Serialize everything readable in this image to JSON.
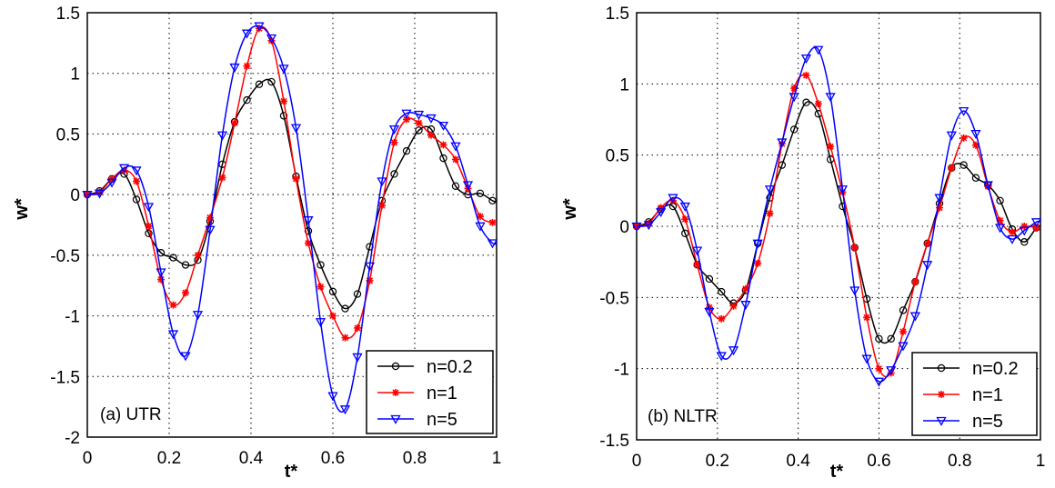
{
  "chart_data": [
    {
      "type": "line",
      "panel_label": "(a) UTR",
      "xlabel": "t*",
      "ylabel": "w*",
      "xlim": [
        0,
        1
      ],
      "ylim": [
        -2,
        1.5
      ],
      "xticks": [
        "0",
        "0.2",
        "0.4",
        "0.6",
        "0.8",
        "1"
      ],
      "yticks": [
        "-2",
        "-1.5",
        "-1",
        "-0.5",
        "0",
        "0.5",
        "1",
        "1.5"
      ],
      "grid": true,
      "legend_position": "bottom-right",
      "x": [
        0,
        0.03,
        0.06,
        0.09,
        0.12,
        0.15,
        0.18,
        0.21,
        0.24,
        0.27,
        0.3,
        0.33,
        0.36,
        0.39,
        0.42,
        0.45,
        0.48,
        0.51,
        0.54,
        0.57,
        0.6,
        0.63,
        0.66,
        0.69,
        0.72,
        0.75,
        0.78,
        0.81,
        0.84,
        0.87,
        0.9,
        0.93,
        0.96,
        0.99,
        1.0
      ],
      "series": [
        {
          "name": "n=0.2",
          "color": "#000000",
          "marker": "circle",
          "values": [
            0,
            0.03,
            0.13,
            0.17,
            -0.04,
            -0.32,
            -0.48,
            -0.52,
            -0.58,
            -0.54,
            -0.22,
            0.25,
            0.6,
            0.78,
            0.91,
            0.93,
            0.65,
            0.15,
            -0.3,
            -0.58,
            -0.8,
            -0.94,
            -0.82,
            -0.43,
            -0.05,
            0.17,
            0.36,
            0.53,
            0.54,
            0.3,
            0.07,
            0.0,
            0.01,
            -0.05,
            -0.06
          ]
        },
        {
          "name": "n=1",
          "color": "#ff0000",
          "marker": "star",
          "values": [
            0,
            0.02,
            0.13,
            0.2,
            0.11,
            -0.26,
            -0.7,
            -0.91,
            -0.81,
            -0.5,
            -0.19,
            0.14,
            0.59,
            1.06,
            1.37,
            1.27,
            0.77,
            0.13,
            -0.4,
            -0.76,
            -1.0,
            -1.18,
            -1.1,
            -0.71,
            -0.09,
            0.43,
            0.62,
            0.59,
            0.49,
            0.41,
            0.29,
            0.05,
            -0.18,
            -0.23,
            -0.22
          ]
        },
        {
          "name": "n=5",
          "color": "#0000ff",
          "marker": "triangle-down",
          "values": [
            0,
            0.01,
            0.1,
            0.22,
            0.2,
            -0.1,
            -0.64,
            -1.15,
            -1.33,
            -0.99,
            -0.29,
            0.49,
            1.05,
            1.33,
            1.39,
            1.29,
            1.04,
            0.55,
            -0.21,
            -1.05,
            -1.66,
            -1.77,
            -1.34,
            -0.59,
            0.11,
            0.54,
            0.67,
            0.66,
            0.63,
            0.57,
            0.4,
            0.08,
            -0.26,
            -0.4,
            -0.4
          ]
        }
      ]
    },
    {
      "type": "line",
      "panel_label": "(b) NLTR",
      "xlabel": "t*",
      "ylabel": "w*",
      "xlim": [
        0,
        1
      ],
      "ylim": [
        -1.5,
        1.5
      ],
      "xticks": [
        "0",
        "0.2",
        "0.4",
        "0.6",
        "0.8",
        "1"
      ],
      "yticks": [
        "-1.5",
        "-1",
        "-0.5",
        "0",
        "0.5",
        "1",
        "1.5"
      ],
      "grid": true,
      "legend_position": "bottom-right",
      "x": [
        0,
        0.03,
        0.06,
        0.09,
        0.12,
        0.15,
        0.18,
        0.21,
        0.24,
        0.27,
        0.3,
        0.33,
        0.36,
        0.39,
        0.42,
        0.45,
        0.48,
        0.51,
        0.54,
        0.57,
        0.6,
        0.63,
        0.66,
        0.69,
        0.72,
        0.75,
        0.78,
        0.81,
        0.84,
        0.87,
        0.9,
        0.93,
        0.96,
        0.99,
        1.0
      ],
      "series": [
        {
          "name": "n=0.2",
          "color": "#000000",
          "marker": "circle",
          "values": [
            0,
            0.03,
            0.12,
            0.14,
            -0.05,
            -0.27,
            -0.37,
            -0.46,
            -0.54,
            -0.45,
            -0.12,
            0.2,
            0.43,
            0.68,
            0.87,
            0.79,
            0.47,
            0.14,
            -0.15,
            -0.51,
            -0.79,
            -0.79,
            -0.59,
            -0.39,
            -0.12,
            0.16,
            0.41,
            0.43,
            0.34,
            0.29,
            0.18,
            -0.02,
            -0.11,
            -0.01,
            0.0
          ]
        },
        {
          "name": "n=1",
          "color": "#ff0000",
          "marker": "star",
          "values": [
            0,
            0.02,
            0.13,
            0.18,
            0.05,
            -0.27,
            -0.57,
            -0.65,
            -0.56,
            -0.44,
            -0.26,
            0.09,
            0.58,
            0.97,
            1.06,
            0.86,
            0.56,
            0.24,
            -0.15,
            -0.64,
            -1.0,
            -1.03,
            -0.74,
            -0.39,
            -0.12,
            0.13,
            0.41,
            0.62,
            0.57,
            0.28,
            0.04,
            -0.04,
            0.0,
            -0.01,
            -0.01
          ]
        },
        {
          "name": "n=5",
          "color": "#0000ff",
          "marker": "triangle-down",
          "values": [
            0,
            0.01,
            0.1,
            0.2,
            0.14,
            -0.17,
            -0.6,
            -0.91,
            -0.87,
            -0.55,
            -0.12,
            0.26,
            0.59,
            0.91,
            1.18,
            1.24,
            0.91,
            0.26,
            -0.45,
            -0.93,
            -1.09,
            -1.01,
            -0.84,
            -0.63,
            -0.27,
            0.2,
            0.64,
            0.81,
            0.65,
            0.29,
            -0.01,
            -0.09,
            -0.03,
            0.03,
            0.03
          ]
        }
      ]
    }
  ]
}
